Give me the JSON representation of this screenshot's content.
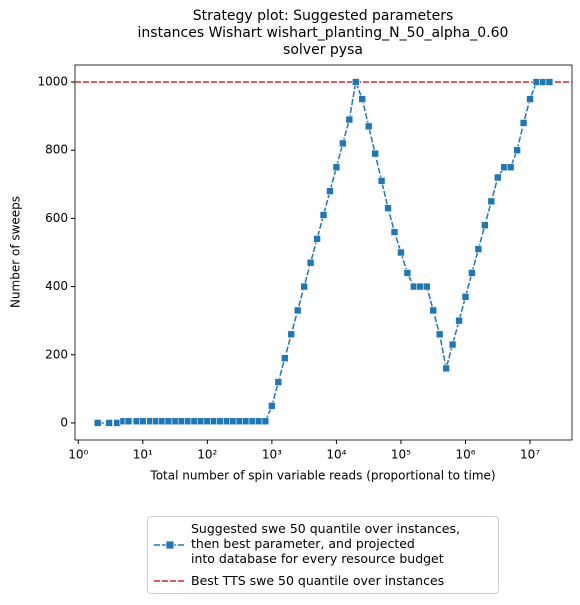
{
  "chart_data": {
    "type": "line",
    "title": "Strategy plot: Suggested parameters\n instances Wishart wishart_planting_N_50_alpha_0.60\n solver pysa",
    "xlabel": "Total number of spin variable reads (proportional to time)",
    "ylabel": "Number of sweeps",
    "xscale": "log",
    "x": [
      2,
      3,
      4,
      5,
      6,
      8,
      10,
      13,
      16,
      20,
      25,
      32,
      40,
      50,
      63,
      79,
      100,
      126,
      158,
      200,
      251,
      316,
      398,
      501,
      631,
      794,
      1000,
      1259,
      1585,
      1995,
      2512,
      3162,
      3981,
      5012,
      6310,
      7943,
      10000,
      12589,
      15849,
      19953,
      25119,
      31623,
      39811,
      50119,
      63096,
      79433,
      100000,
      125893,
      158489,
      199526,
      251189,
      316228,
      398107,
      501187,
      630957,
      794328,
      1000000,
      1258925,
      1584893,
      1995262,
      2511886,
      3162278,
      3981072,
      5011872,
      6309573,
      7943282,
      10000000,
      12589254,
      15848932,
      19952623
    ],
    "series": [
      {
        "name": "Suggested swe 50 quantile over instances,\n then best parameter, and projected\n into database for every resource budget",
        "color": "#1f77b4",
        "values": [
          0,
          0,
          0,
          5,
          5,
          5,
          5,
          5,
          5,
          5,
          5,
          5,
          5,
          5,
          5,
          5,
          5,
          5,
          5,
          5,
          5,
          5,
          5,
          5,
          5,
          5,
          50,
          120,
          190,
          260,
          330,
          400,
          470,
          540,
          610,
          680,
          750,
          820,
          890,
          1000,
          950,
          870,
          790,
          710,
          630,
          560,
          500,
          440,
          400,
          400,
          400,
          330,
          260,
          160,
          230,
          300,
          370,
          440,
          510,
          580,
          650,
          720,
          750,
          750,
          800,
          880,
          950,
          1000,
          1000,
          1000
        ]
      }
    ],
    "reference_line": {
      "name": "Best TTS swe 50 quantile over instances",
      "color": "#d62728",
      "value": 1000
    },
    "xlim": [
      0.89,
      44700000
    ],
    "xticks": [
      {
        "value": 1,
        "label": "10⁰"
      },
      {
        "value": 10,
        "label": "10¹"
      },
      {
        "value": 100,
        "label": "10²"
      },
      {
        "value": 1000,
        "label": "10³"
      },
      {
        "value": 10000,
        "label": "10⁴"
      },
      {
        "value": 100000,
        "label": "10⁵"
      },
      {
        "value": 1000000,
        "label": "10⁶"
      },
      {
        "value": 10000000,
        "label": "10⁷"
      }
    ],
    "ylim": [
      -50,
      1050
    ],
    "yticks": [
      0,
      200,
      400,
      600,
      800,
      1000
    ]
  }
}
